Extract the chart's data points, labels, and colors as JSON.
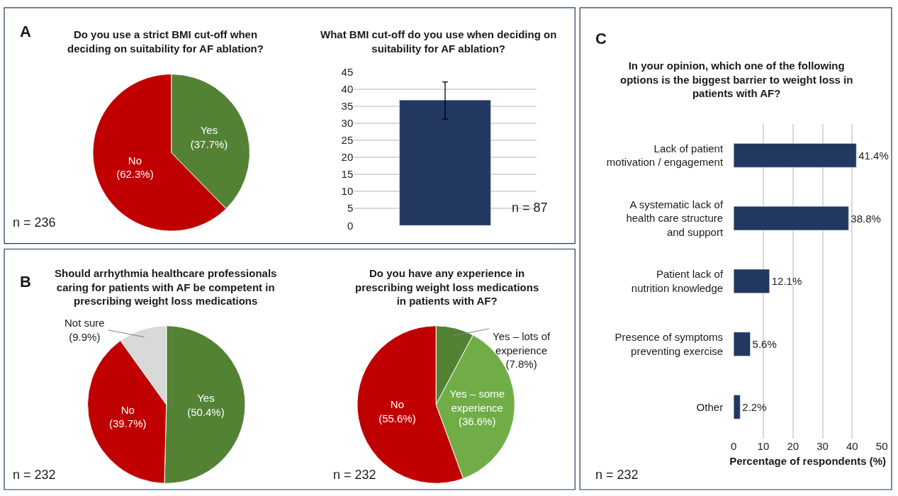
{
  "chart_data": [
    {
      "type": "pie",
      "title": "Do you use a strict BMI cut-off when deciding on suitability for AF ablation?",
      "categories": [
        "Yes",
        "No"
      ],
      "values": [
        37.7,
        62.3
      ],
      "colors": [
        "#548235",
        "#c00000"
      ],
      "value_labels": [
        "(37.7%)",
        "(62.3%)"
      ],
      "legend": false,
      "annotations": [
        "A",
        "n = 236"
      ]
    },
    {
      "type": "bar",
      "title": "What BMI cut-off do you use when deciding on suitability for AF ablation?",
      "categories": [
        null
      ],
      "values": [
        36.8
      ],
      "errors": [
        [
          31.2,
          42.1
        ]
      ],
      "color": "#223861",
      "ylim": [
        0,
        45
      ],
      "yticks": [
        0,
        5,
        10,
        15,
        20,
        25,
        30,
        35,
        40,
        45
      ],
      "grid": "y",
      "tick_labels": "y",
      "legend": false,
      "annotations": [
        "n = 87"
      ]
    },
    {
      "type": "pie",
      "title": "Should arrhythmia healthcare professionals caring for patients with AF be competent in prescribing weight loss medications",
      "categories": [
        "Yes",
        "No",
        "Not sure"
      ],
      "values": [
        50.4,
        39.7,
        9.9
      ],
      "colors": [
        "#548235",
        "#c00000",
        "#d9d9d9"
      ],
      "value_labels": [
        "(50.4%)",
        "(39.7%)",
        "(9.9%)"
      ],
      "legend": false,
      "annotations": [
        "B",
        "n = 232"
      ]
    },
    {
      "type": "pie",
      "title": "Do you have any experience in prescribing weight loss medications in patients with AF?",
      "categories": [
        "Yes – lots of experience",
        "Yes – some experience",
        "No"
      ],
      "values": [
        7.8,
        36.6,
        55.6
      ],
      "colors": [
        "#548235",
        "#70ad47",
        "#c00000"
      ],
      "value_labels": [
        "(7.8%)",
        "(36.6%)",
        "(55.6%)"
      ],
      "legend": false,
      "annotations": [
        "n = 232"
      ]
    },
    {
      "type": "bar",
      "orientation": "horizontal",
      "title": "In your opinion, which one of the following options is the biggest barrier to weight loss in patients with AF?",
      "xlabel": "Percentage of respondents (%)",
      "categories": [
        "Lack of patient motivation / engagement",
        "A systematic lack of health care structure and support",
        "Patient lack of nutrition knowledge",
        "Presence of symptoms preventing exercise",
        "Other"
      ],
      "values": [
        41.4,
        38.8,
        12.1,
        5.6,
        2.2
      ],
      "value_labels": [
        "41.4%",
        "38.8%",
        "12.1%",
        "5.6%",
        "2.2%"
      ],
      "color": "#223861",
      "xlim": [
        0,
        50
      ],
      "xticks": [
        0,
        10,
        20,
        30,
        40,
        50
      ],
      "grid": "x",
      "legend": false,
      "annotations": [
        "C",
        "n = 232"
      ]
    }
  ]
}
